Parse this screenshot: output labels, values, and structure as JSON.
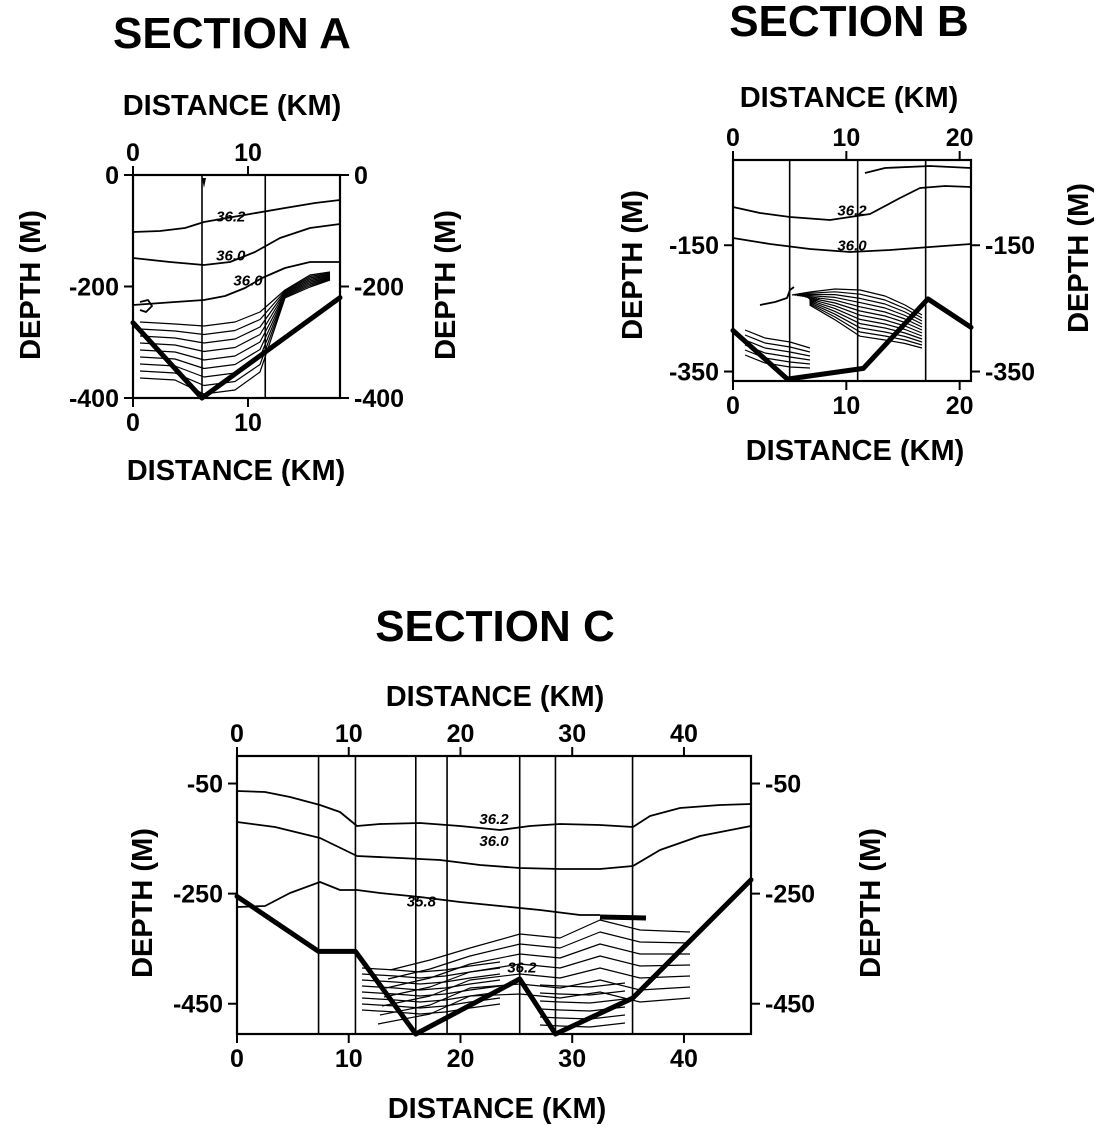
{
  "chart_data": [
    {
      "type": "contour",
      "title": "SECTION A",
      "xlabel_top": "DISTANCE (KM)",
      "xlabel_bottom": "DISTANCE (KM)",
      "ylabel_left": "DEPTH (M)",
      "ylabel_right": "DEPTH (M)",
      "xlim": [
        0,
        18
      ],
      "ylim": [
        -400,
        0
      ],
      "x_ticks_top": [
        0,
        10
      ],
      "x_ticks_bottom": [
        0,
        10
      ],
      "y_ticks": [
        0,
        -200,
        -400
      ],
      "y_tick_labels_left": [
        "0",
        "-200",
        "-400"
      ],
      "y_tick_labels_right": [
        "0",
        "-200",
        "-400"
      ],
      "stations_km": [
        6,
        11.5,
        18
      ],
      "contour_labels": [
        {
          "text": "36.2",
          "x": 8.5,
          "y": -80
        },
        {
          "text": "36.0",
          "x": 8.5,
          "y": -150
        },
        {
          "text": "36.0",
          "x": 10,
          "y": -195
        }
      ],
      "bathymetry": [
        [
          0,
          -265
        ],
        [
          6,
          -400
        ],
        [
          18,
          -220
        ]
      ]
    },
    {
      "type": "contour",
      "title": "SECTION B",
      "xlabel_top": "DISTANCE (KM)",
      "xlabel_bottom": "DISTANCE (KM)",
      "ylabel_left": "DEPTH (M)",
      "ylabel_right": "DEPTH (M)",
      "xlim": [
        0,
        21
      ],
      "ylim": [
        -365,
        -15
      ],
      "x_ticks_top": [
        0,
        10,
        20
      ],
      "x_ticks_bottom": [
        0,
        10,
        20
      ],
      "y_ticks": [
        -150,
        -350
      ],
      "y_tick_labels_left": [
        "-150",
        "-350"
      ],
      "y_tick_labels_right": [
        "-150",
        "-350"
      ],
      "stations_km": [
        5,
        11,
        17
      ],
      "contour_labels": [
        {
          "text": "36.2",
          "x": 10.5,
          "y": -100
        },
        {
          "text": "36.0",
          "x": 10.5,
          "y": -155
        }
      ],
      "bathymetry": [
        [
          0,
          -285
        ],
        [
          4.8,
          -362
        ],
        [
          11.5,
          -345
        ],
        [
          17.2,
          -235
        ],
        [
          21,
          -280
        ]
      ]
    },
    {
      "type": "contour",
      "title": "SECTION C",
      "xlabel_top": "DISTANCE (KM)",
      "xlabel_bottom": "DISTANCE (KM)",
      "ylabel_left": "DEPTH (M)",
      "ylabel_right": "DEPTH (M)",
      "xlim": [
        0,
        46
      ],
      "ylim": [
        -505,
        0
      ],
      "x_ticks_top": [
        0,
        10,
        20,
        30,
        40
      ],
      "x_ticks_bottom": [
        0,
        10,
        20,
        30,
        40
      ],
      "y_ticks": [
        -50,
        -250,
        -450
      ],
      "y_tick_labels_left": [
        "-50",
        "-250",
        "-450"
      ],
      "y_tick_labels_right": [
        "-50",
        "-250",
        "-450"
      ],
      "stations_km": [
        7.3,
        10.6,
        16,
        18.8,
        25.3,
        28.5,
        35.4
      ],
      "contour_labels": [
        {
          "text": "36.2",
          "x": 23,
          "y": -120
        },
        {
          "text": "36.0",
          "x": 23,
          "y": -160
        },
        {
          "text": "35.8",
          "x": 16.5,
          "y": -270
        },
        {
          "text": "36.2",
          "x": 25.5,
          "y": -390
        }
      ],
      "bathymetry": [
        [
          0,
          -255
        ],
        [
          7.3,
          -355
        ],
        [
          10.6,
          -355
        ],
        [
          16,
          -505
        ],
        [
          25.3,
          -405
        ],
        [
          28.5,
          -505
        ],
        [
          35.4,
          -440
        ],
        [
          46,
          -225
        ]
      ]
    }
  ]
}
